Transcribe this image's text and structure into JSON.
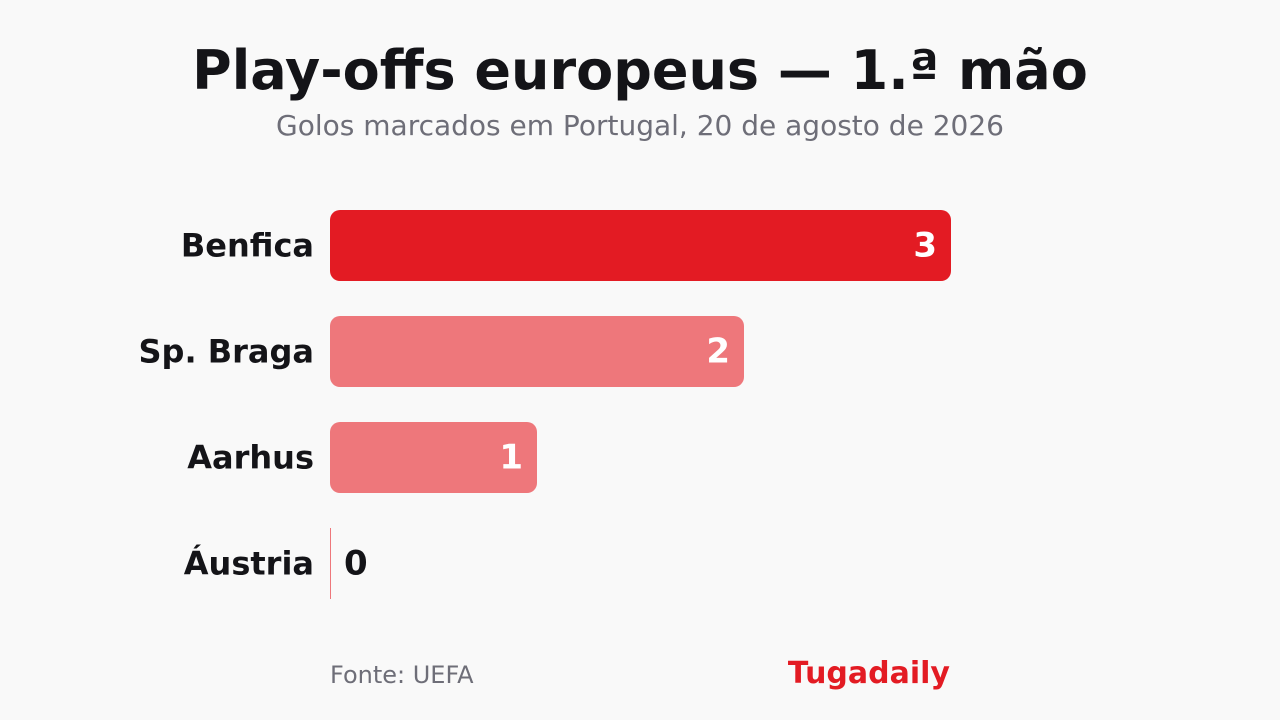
{
  "header": {
    "title": "Play-offs europeus — 1.ª mão",
    "subtitle": "Golos marcados em Portugal, 20 de agosto de 2026"
  },
  "footer": {
    "source": "Fonte: UEFA",
    "brand": "Tugadaily"
  },
  "colors": {
    "highlight": "#e31b23",
    "secondary": "#ee777b",
    "value_inside": "#ffffff",
    "value_outside": "#141418"
  },
  "chart_data": {
    "type": "bar",
    "orientation": "horizontal",
    "categories": [
      "Benfica",
      "Sp. Braga",
      "Aarhus",
      "Áustria"
    ],
    "values": [
      3,
      2,
      1,
      0
    ],
    "title": "Play-offs europeus — 1.ª mão",
    "subtitle": "Golos marcados em Portugal, 20 de agosto de 2026",
    "xlim": [
      0,
      3
    ],
    "grid": false,
    "legend": "none"
  }
}
